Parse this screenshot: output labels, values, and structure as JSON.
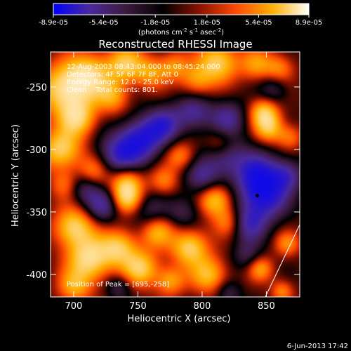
{
  "chart_data": {
    "type": "heatmap",
    "title": "Reconstructed RHESSI Image",
    "xlabel": "Heliocentric X (arcsec)",
    "ylabel": "Heliocentric Y (arcsec)",
    "xlim": [
      682,
      876
    ],
    "ylim": [
      -418,
      -222
    ],
    "x_ticks": [
      "700",
      "750",
      "800",
      "850"
    ],
    "y_ticks": [
      "-250",
      "-300",
      "-350",
      "-400"
    ],
    "colorbar": {
      "min": -8.9e-05,
      "max": 8.9e-05,
      "tick_labels": [
        "-8.9e-05",
        "-5.4e-05",
        "-1.8e-05",
        "1.8e-05",
        "5.4e-05",
        "8.9e-05"
      ],
      "unit_prefix": "(photons cm",
      "unit_sup1": "-2",
      "unit_mid": " s",
      "unit_sup2": "-1",
      "unit_mid2": " asec",
      "unit_sup3": "-2",
      "unit_suffix": ")",
      "colormap": [
        "#0000ff",
        "#4b2a9a",
        "#3c1a3c",
        "#000000",
        "#8a1200",
        "#ff4a00",
        "#ffb000",
        "#ffffff"
      ]
    },
    "annotations": [
      "12-Aug-2003 08:43:04.000 to 08:45:24.000",
      "Detectors: 4F 5F 6F 7F 8F, Att 0",
      "Energy Range: 12.0 - 25.0 keV",
      "Clean    Total counts: 801."
    ],
    "peak_label": "Position of Peak = [695,-258]",
    "marker": {
      "x": 843,
      "y": -337
    },
    "blobs": [
      {
        "x": 693,
        "y": -252,
        "r": 14,
        "v": 1.0
      },
      {
        "x": 712,
        "y": -240,
        "r": 12,
        "v": 0.85
      },
      {
        "x": 740,
        "y": -232,
        "r": 10,
        "v": 0.8
      },
      {
        "x": 760,
        "y": -238,
        "r": 9,
        "v": 0.55
      },
      {
        "x": 703,
        "y": -275,
        "r": 10,
        "v": 0.8
      },
      {
        "x": 730,
        "y": -258,
        "r": 9,
        "v": 0.6
      },
      {
        "x": 690,
        "y": -300,
        "r": 11,
        "v": 0.9
      },
      {
        "x": 715,
        "y": -318,
        "r": 9,
        "v": 0.6
      },
      {
        "x": 693,
        "y": -328,
        "r": 8,
        "v": 0.45
      },
      {
        "x": 778,
        "y": -233,
        "r": 8,
        "v": 0.5
      },
      {
        "x": 795,
        "y": -245,
        "r": 9,
        "v": 0.55
      },
      {
        "x": 812,
        "y": -230,
        "r": 11,
        "v": 0.9
      },
      {
        "x": 842,
        "y": -232,
        "r": 9,
        "v": 0.55
      },
      {
        "x": 860,
        "y": -235,
        "r": 8,
        "v": 0.5
      },
      {
        "x": 783,
        "y": -305,
        "r": 8,
        "v": 0.55
      },
      {
        "x": 814,
        "y": -295,
        "r": 8,
        "v": 0.45
      },
      {
        "x": 770,
        "y": -325,
        "r": 8,
        "v": 0.5
      },
      {
        "x": 741,
        "y": -326,
        "r": 9,
        "v": 0.85
      },
      {
        "x": 741,
        "y": -340,
        "r": 8,
        "v": 0.7
      },
      {
        "x": 852,
        "y": -283,
        "r": 8,
        "v": 0.7
      },
      {
        "x": 848,
        "y": -270,
        "r": 8,
        "v": 0.8
      },
      {
        "x": 868,
        "y": -290,
        "r": 7,
        "v": 0.45
      },
      {
        "x": 810,
        "y": -340,
        "r": 9,
        "v": 0.85
      },
      {
        "x": 820,
        "y": -358,
        "r": 8,
        "v": 0.5
      },
      {
        "x": 700,
        "y": -362,
        "r": 11,
        "v": 0.9
      },
      {
        "x": 712,
        "y": -388,
        "r": 12,
        "v": 1.0
      },
      {
        "x": 735,
        "y": -378,
        "r": 10,
        "v": 0.8
      },
      {
        "x": 752,
        "y": -395,
        "r": 10,
        "v": 0.85
      },
      {
        "x": 765,
        "y": -365,
        "r": 9,
        "v": 0.7
      },
      {
        "x": 790,
        "y": -378,
        "r": 10,
        "v": 0.9
      },
      {
        "x": 805,
        "y": -400,
        "r": 10,
        "v": 0.75
      },
      {
        "x": 775,
        "y": -405,
        "r": 8,
        "v": 0.6
      },
      {
        "x": 700,
        "y": -410,
        "r": 9,
        "v": 0.6
      },
      {
        "x": 845,
        "y": -395,
        "r": 7,
        "v": 0.6
      },
      {
        "x": 866,
        "y": -375,
        "r": 7,
        "v": 0.5
      },
      {
        "x": 862,
        "y": -413,
        "r": 6,
        "v": 0.5
      },
      {
        "x": 752,
        "y": -292,
        "r": 12,
        "v": -0.9
      },
      {
        "x": 735,
        "y": -305,
        "r": 12,
        "v": -0.75
      },
      {
        "x": 770,
        "y": -280,
        "r": 10,
        "v": -0.7
      },
      {
        "x": 722,
        "y": -345,
        "r": 9,
        "v": -0.65
      },
      {
        "x": 708,
        "y": -330,
        "r": 9,
        "v": -0.55
      },
      {
        "x": 800,
        "y": -322,
        "r": 10,
        "v": -0.6
      },
      {
        "x": 793,
        "y": -270,
        "r": 10,
        "v": -0.65
      },
      {
        "x": 820,
        "y": -275,
        "r": 10,
        "v": -0.6
      },
      {
        "x": 818,
        "y": -305,
        "r": 11,
        "v": -0.6
      },
      {
        "x": 842,
        "y": -318,
        "r": 12,
        "v": -0.75
      },
      {
        "x": 848,
        "y": -337,
        "r": 13,
        "v": -1.0
      },
      {
        "x": 866,
        "y": -320,
        "r": 9,
        "v": -0.6
      },
      {
        "x": 836,
        "y": -360,
        "r": 10,
        "v": -0.65
      },
      {
        "x": 760,
        "y": -350,
        "r": 10,
        "v": -0.4
      },
      {
        "x": 785,
        "y": -350,
        "r": 9,
        "v": -0.4
      },
      {
        "x": 835,
        "y": -385,
        "r": 8,
        "v": -0.4
      },
      {
        "x": 855,
        "y": -252,
        "r": 8,
        "v": -0.4
      },
      {
        "x": 735,
        "y": -410,
        "r": 7,
        "v": -0.4
      },
      {
        "x": 820,
        "y": -415,
        "r": 7,
        "v": -0.4
      }
    ]
  },
  "footer": {
    "date": "6-Jun-2013 17:42"
  }
}
